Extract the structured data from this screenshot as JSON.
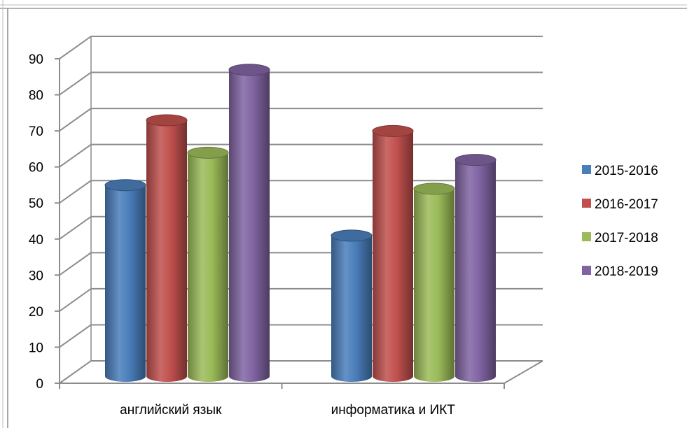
{
  "chart_data": {
    "type": "bar",
    "style": "3d-cylinder",
    "categories": [
      "английский язык",
      "информатика и ИКТ"
    ],
    "series": [
      {
        "name": "2015-2016",
        "values": [
          53,
          39
        ],
        "color": "#4a7ebb"
      },
      {
        "name": "2016-2017",
        "values": [
          71,
          68
        ],
        "color": "#c0504d"
      },
      {
        "name": "2017-2018",
        "values": [
          62,
          52
        ],
        "color": "#9bbb59"
      },
      {
        "name": "2018-2019",
        "values": [
          85,
          60
        ],
        "color": "#8064a2"
      }
    ],
    "ylim": [
      0,
      90
    ],
    "yticks": [
      "0",
      "10",
      "20",
      "30",
      "40",
      "50",
      "60",
      "70",
      "80",
      "90"
    ],
    "grid": true,
    "legend": "right"
  }
}
